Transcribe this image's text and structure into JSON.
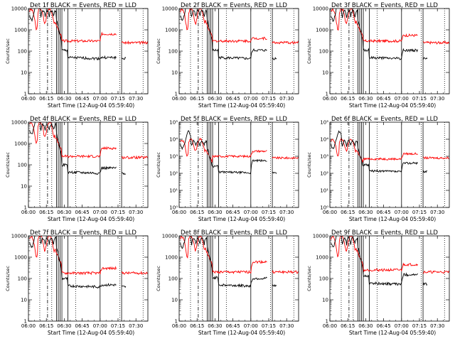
{
  "chart_data": {
    "type": "line",
    "x_tick_labels": [
      "06:00",
      "06:15",
      "06:30",
      "06:45",
      "07:00",
      "07:15",
      "07:30"
    ],
    "x_ticks_min": [
      0,
      15,
      30,
      45,
      60,
      75,
      90
    ],
    "xlim_min": [
      0,
      100
    ],
    "xlabel": "Start Time (12-Aug-04 05:59:40)",
    "ylabel": "Counts/sec",
    "yscale": "log",
    "grid": false,
    "series_colors": {
      "events": "#000000",
      "lld": "#ff0000"
    },
    "vertical_markers": {
      "dotted": [
        9.5,
        19.5,
        39.5,
        76.5,
        96
      ],
      "dashdot": [
        16
      ],
      "solid": [
        23.5,
        25,
        26.5,
        28,
        33,
        60,
        78
      ]
    },
    "panels": [
      {
        "title": "Det 1f BLACK = Events, RED = LLD",
        "ylim": [
          1,
          10000
        ],
        "yticks": [
          1,
          10,
          100,
          1000,
          10000
        ],
        "ytick_labels": [
          "1",
          "10",
          "100",
          "1000",
          "10000"
        ],
        "events_level": 50,
        "events_bump": 50,
        "lld_level": 300,
        "lld_bump": 650,
        "lld_tail": 250
      },
      {
        "title": "Det 2f BLACK = Events, RED = LLD",
        "ylim": [
          1,
          10000
        ],
        "yticks": [
          1,
          10,
          100,
          1000,
          10000
        ],
        "ytick_labels": [
          "1",
          "10",
          "100",
          "1000",
          "10000"
        ],
        "events_level": 50,
        "events_bump": 110,
        "lld_level": 300,
        "lld_bump": 400,
        "lld_tail": 250
      },
      {
        "title": "Det 3f BLACK = Events, RED = LLD",
        "ylim": [
          1,
          10000
        ],
        "yticks": [
          1,
          10,
          100,
          1000,
          10000
        ],
        "ytick_labels": [
          "1",
          "10",
          "100",
          "1000",
          "10000"
        ],
        "events_level": 50,
        "events_bump": 110,
        "lld_level": 300,
        "lld_bump": 550,
        "lld_tail": 250
      },
      {
        "title": "Det 4f BLACK = Events, RED = LLD",
        "ylim": [
          1,
          10000
        ],
        "yticks": [
          1,
          10,
          100,
          1000,
          10000
        ],
        "ytick_labels": [
          "1",
          "10",
          "100",
          "1000",
          "10000"
        ],
        "events_level": 45,
        "events_bump": 70,
        "lld_level": 250,
        "lld_bump": 600,
        "lld_tail": 220
      },
      {
        "title": "Det 5f BLACK = Events, RED = LLD",
        "ylim": [
          1,
          100000
        ],
        "yticks": [
          1,
          10,
          100,
          1000,
          10000,
          100000
        ],
        "ytick_labels": [
          "10⁰",
          "10¹",
          "10²",
          "10³",
          "10⁴",
          "10⁵"
        ],
        "events_level": 120,
        "events_bump": 550,
        "lld_level": 1000,
        "lld_bump": 2000,
        "lld_tail": 800
      },
      {
        "title": "Det 6f BLACK = Events, RED = LLD",
        "ylim": [
          1,
          100000
        ],
        "yticks": [
          1,
          10,
          100,
          1000,
          10000,
          100000
        ],
        "ytick_labels": [
          "10⁰",
          "10¹",
          "10²",
          "10³",
          "10⁴",
          "10⁵"
        ],
        "events_level": 140,
        "events_bump": 400,
        "lld_level": 700,
        "lld_bump": 1400,
        "lld_tail": 800
      },
      {
        "title": "Det 7f BLACK = Events, RED = LLD",
        "ylim": [
          1,
          10000
        ],
        "yticks": [
          1,
          10,
          100,
          1000,
          10000
        ],
        "ytick_labels": [
          "1",
          "10",
          "100",
          "1000",
          "10000"
        ],
        "events_level": 45,
        "events_bump": 50,
        "lld_level": 180,
        "lld_bump": 300,
        "lld_tail": 180
      },
      {
        "title": "Det 8f BLACK = Events, RED = LLD",
        "ylim": [
          1,
          10000
        ],
        "yticks": [
          1,
          10,
          100,
          1000,
          10000
        ],
        "ytick_labels": [
          "1",
          "10",
          "100",
          "1000",
          "10000"
        ],
        "events_level": 50,
        "events_bump": 100,
        "lld_level": 200,
        "lld_bump": 600,
        "lld_tail": 200
      },
      {
        "title": "Det 9f BLACK = Events, RED = LLD",
        "ylim": [
          1,
          10000
        ],
        "yticks": [
          1,
          10,
          100,
          1000,
          10000
        ],
        "ytick_labels": [
          "1",
          "10",
          "100",
          "1000",
          "10000"
        ],
        "events_level": 60,
        "events_bump": 150,
        "lld_level": 250,
        "lld_bump": 450,
        "lld_tail": 200
      }
    ]
  }
}
